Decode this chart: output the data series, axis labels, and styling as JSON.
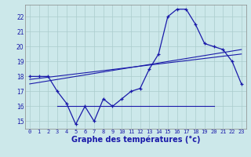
{
  "background_color": "#cce8ea",
  "grid_color": "#aacccc",
  "line_color": "#1a1aaa",
  "xlabel": "Graphe des températures (°c)",
  "xlabel_fontsize": 7,
  "ylim": [
    14.5,
    22.8
  ],
  "xlim": [
    -0.5,
    23.5
  ],
  "yticks": [
    15,
    16,
    17,
    18,
    19,
    20,
    21,
    22
  ],
  "xticks": [
    0,
    1,
    2,
    3,
    4,
    5,
    6,
    7,
    8,
    9,
    10,
    11,
    12,
    13,
    14,
    15,
    16,
    17,
    18,
    19,
    20,
    21,
    22,
    23
  ],
  "temp_curve": [
    18,
    18,
    18,
    17,
    16.2,
    14.8,
    16,
    15,
    16.5,
    16,
    16.5,
    17,
    17.2,
    18.5,
    19.5,
    22,
    22.5,
    22.5,
    21.5,
    20.2,
    20,
    19.8,
    19,
    17.5
  ],
  "trend1_x": [
    0,
    23
  ],
  "trend1_y": [
    17.5,
    19.8
  ],
  "trend2_x": [
    0,
    23
  ],
  "trend2_y": [
    17.8,
    19.5
  ],
  "hline_x": [
    3,
    20
  ],
  "hline_y": [
    16.0,
    16.0
  ]
}
